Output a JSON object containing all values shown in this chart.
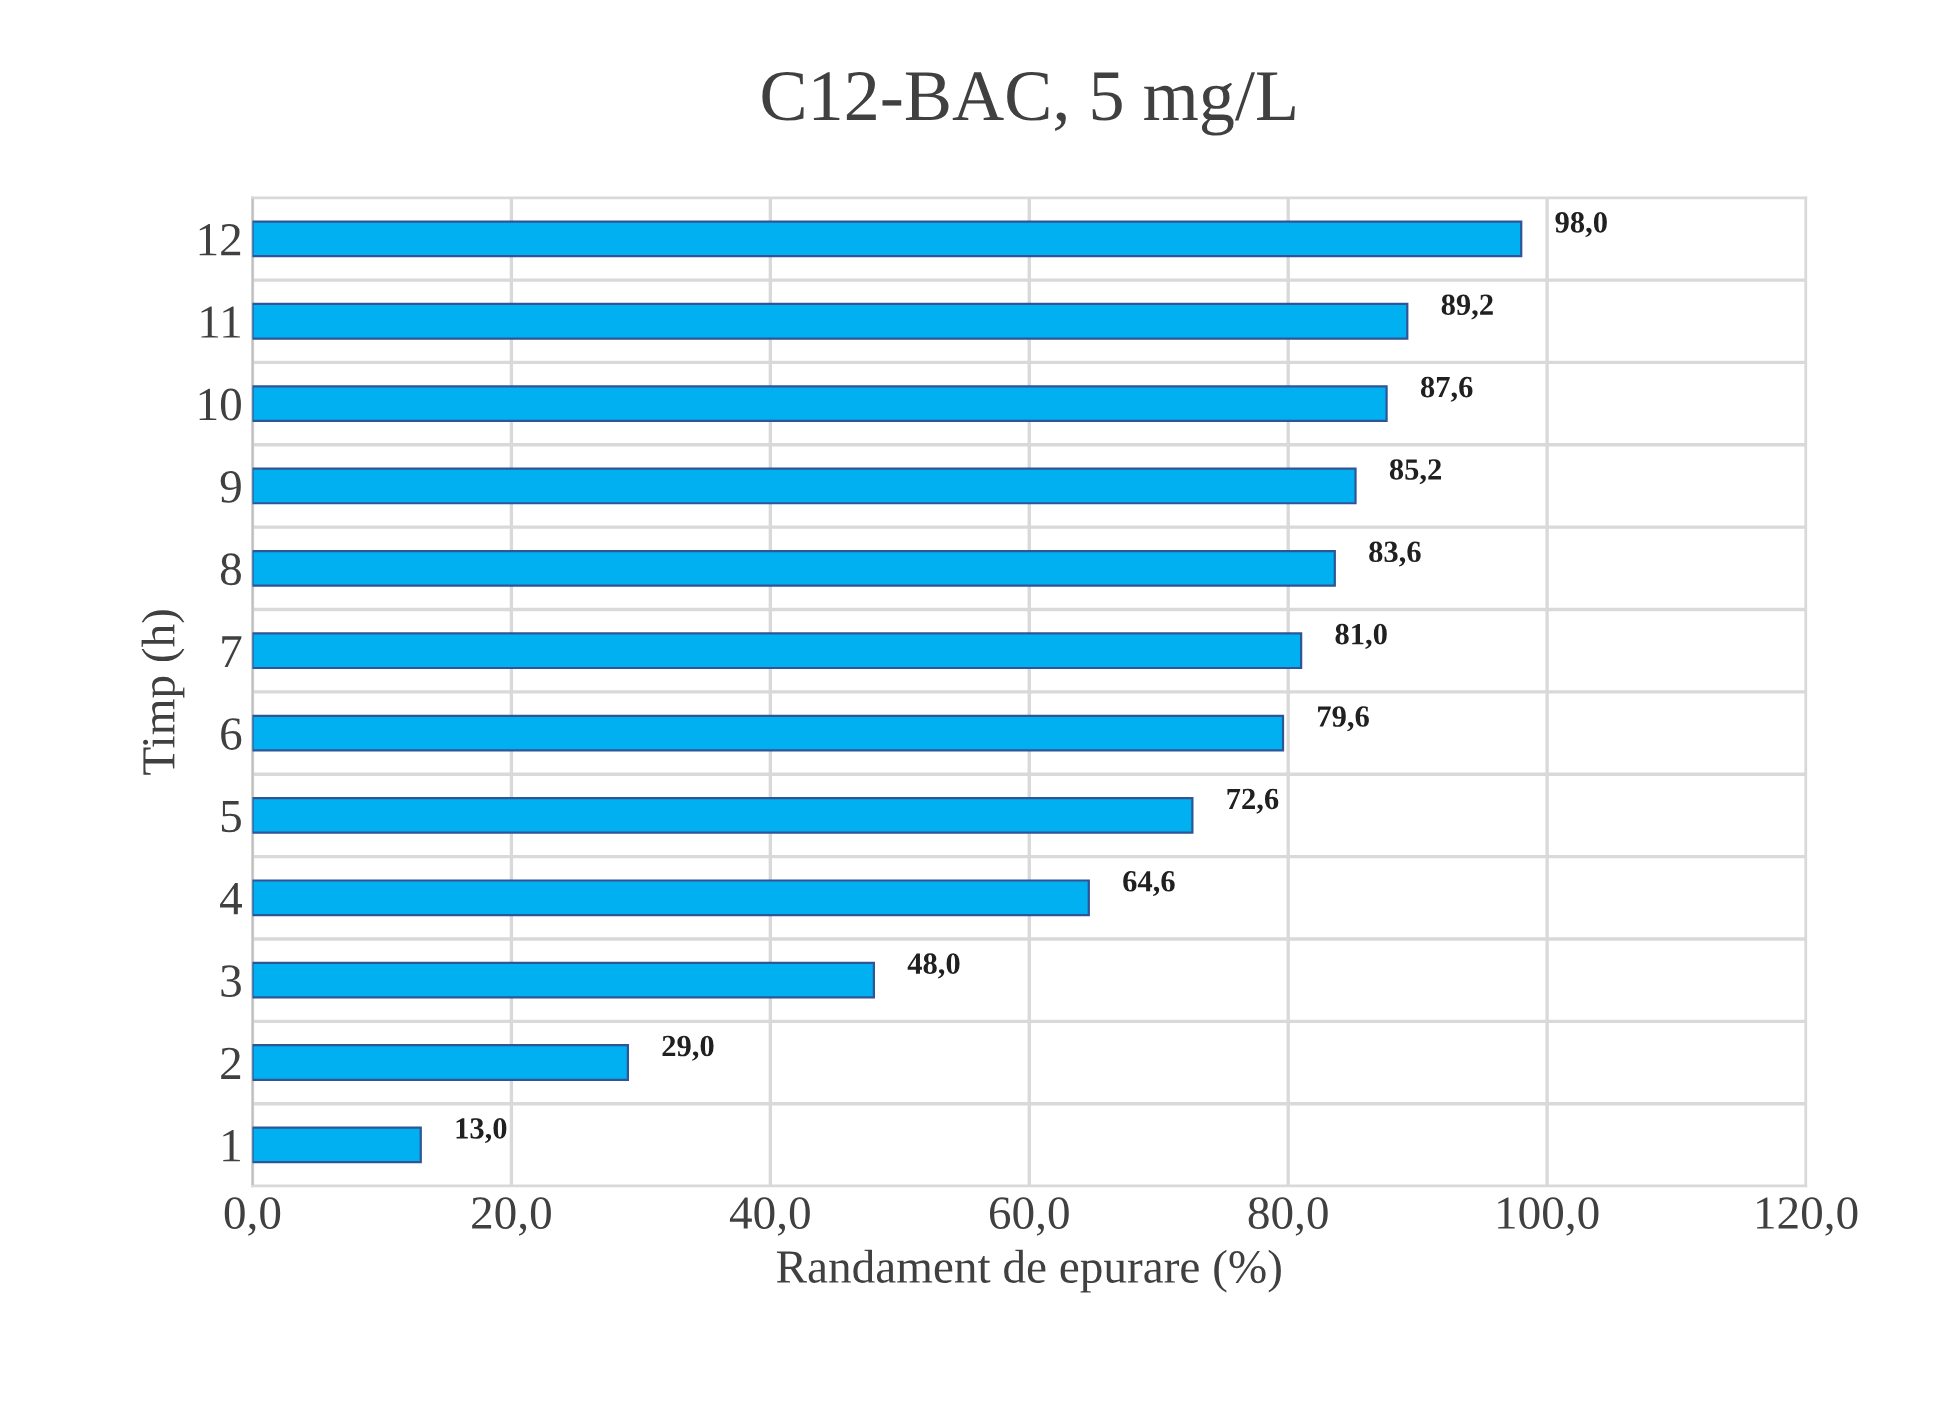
{
  "chart_data": {
    "type": "bar",
    "orientation": "horizontal",
    "title": "C12-BAC, 5 mg/L",
    "xlabel": "Randament de epurare (%)",
    "ylabel": "Timp (h)",
    "categories": [
      "12",
      "11",
      "10",
      "9",
      "8",
      "7",
      "6",
      "5",
      "4",
      "3",
      "2",
      "1"
    ],
    "values": [
      98.0,
      89.2,
      87.6,
      85.2,
      83.6,
      81.0,
      79.6,
      72.6,
      64.6,
      48.0,
      29.0,
      13.0
    ],
    "value_labels": [
      "98,0",
      "89,2",
      "87,6",
      "85,2",
      "83,6",
      "81,0",
      "79,6",
      "72,6",
      "64,6",
      "48,0",
      "29,0",
      "13,0"
    ],
    "color": "#00b0f0",
    "xlim": [
      0,
      120
    ],
    "xticks": [
      {
        "value": 0,
        "label": "0,0"
      },
      {
        "value": 20,
        "label": "20,0"
      },
      {
        "value": 40,
        "label": "40,0"
      },
      {
        "value": 60,
        "label": "60,0"
      },
      {
        "value": 80,
        "label": "80,0"
      },
      {
        "value": 100,
        "label": "100,0"
      },
      {
        "value": 120,
        "label": "120,0"
      }
    ],
    "grid": true
  }
}
